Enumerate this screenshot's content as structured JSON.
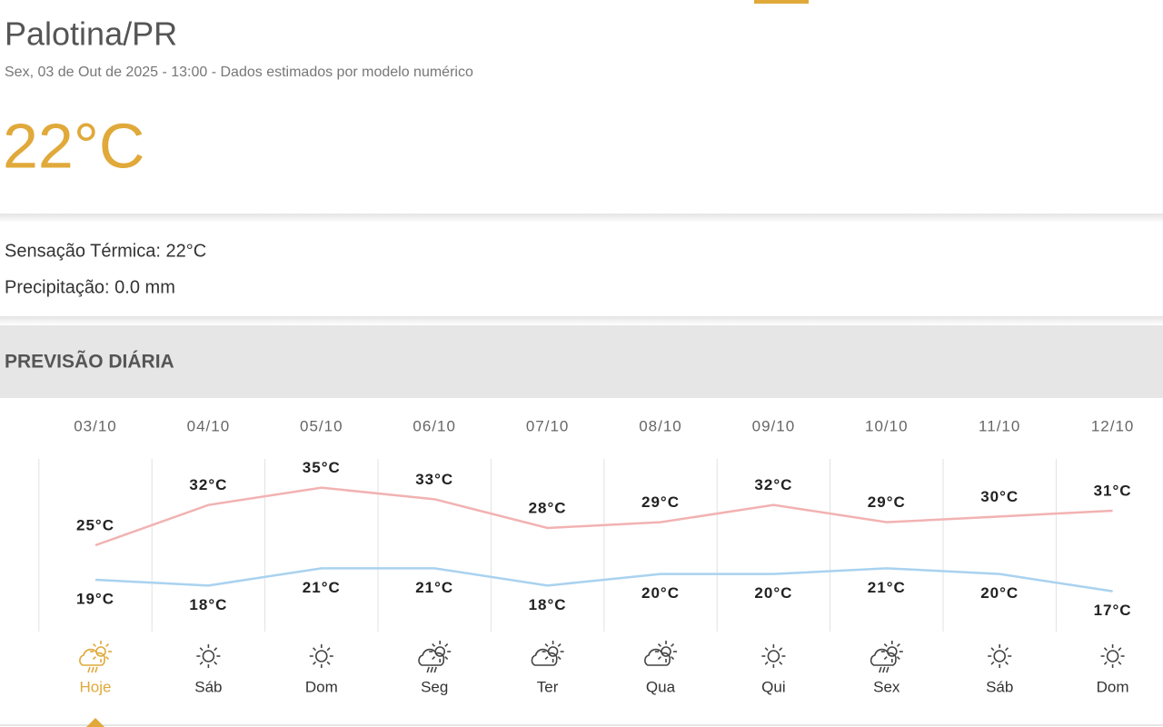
{
  "header": {
    "title": "Palotina/PR",
    "subtitle": "Sex, 03 de Out de 2025 - 13:00 - Dados estimados por modelo numérico",
    "temperature": "22°C"
  },
  "details": {
    "feels_like": "Sensação Térmica: 22°C",
    "precipitation": "Precipitação: 0.0 mm"
  },
  "section": {
    "title": "PREVISÃO DIÁRIA"
  },
  "chart_data": {
    "type": "line",
    "categories": [
      "03/10",
      "04/10",
      "05/10",
      "06/10",
      "07/10",
      "08/10",
      "09/10",
      "10/10",
      "11/10",
      "12/10"
    ],
    "days": [
      "Hoje",
      "Sáb",
      "Dom",
      "Seg",
      "Ter",
      "Qua",
      "Qui",
      "Sex",
      "Sáb",
      "Dom"
    ],
    "ylim": [
      10,
      40
    ],
    "series": [
      {
        "color": "#f2b2b2",
        "values": [
          25,
          32,
          35,
          33,
          28,
          29,
          32,
          29,
          30,
          31
        ],
        "value_labels": [
          "25°C",
          "32°C",
          "35°C",
          "33°C",
          "28°C",
          "29°C",
          "32°C",
          "29°C",
          "30°C",
          "31°C"
        ]
      },
      {
        "color": "#a9d2f0",
        "values": [
          19,
          18,
          21,
          21,
          18,
          20,
          20,
          21,
          20,
          17
        ],
        "value_labels": [
          "19°C",
          "18°C",
          "21°C",
          "21°C",
          "18°C",
          "20°C",
          "20°C",
          "21°C",
          "20°C",
          "17°C"
        ]
      }
    ]
  }
}
